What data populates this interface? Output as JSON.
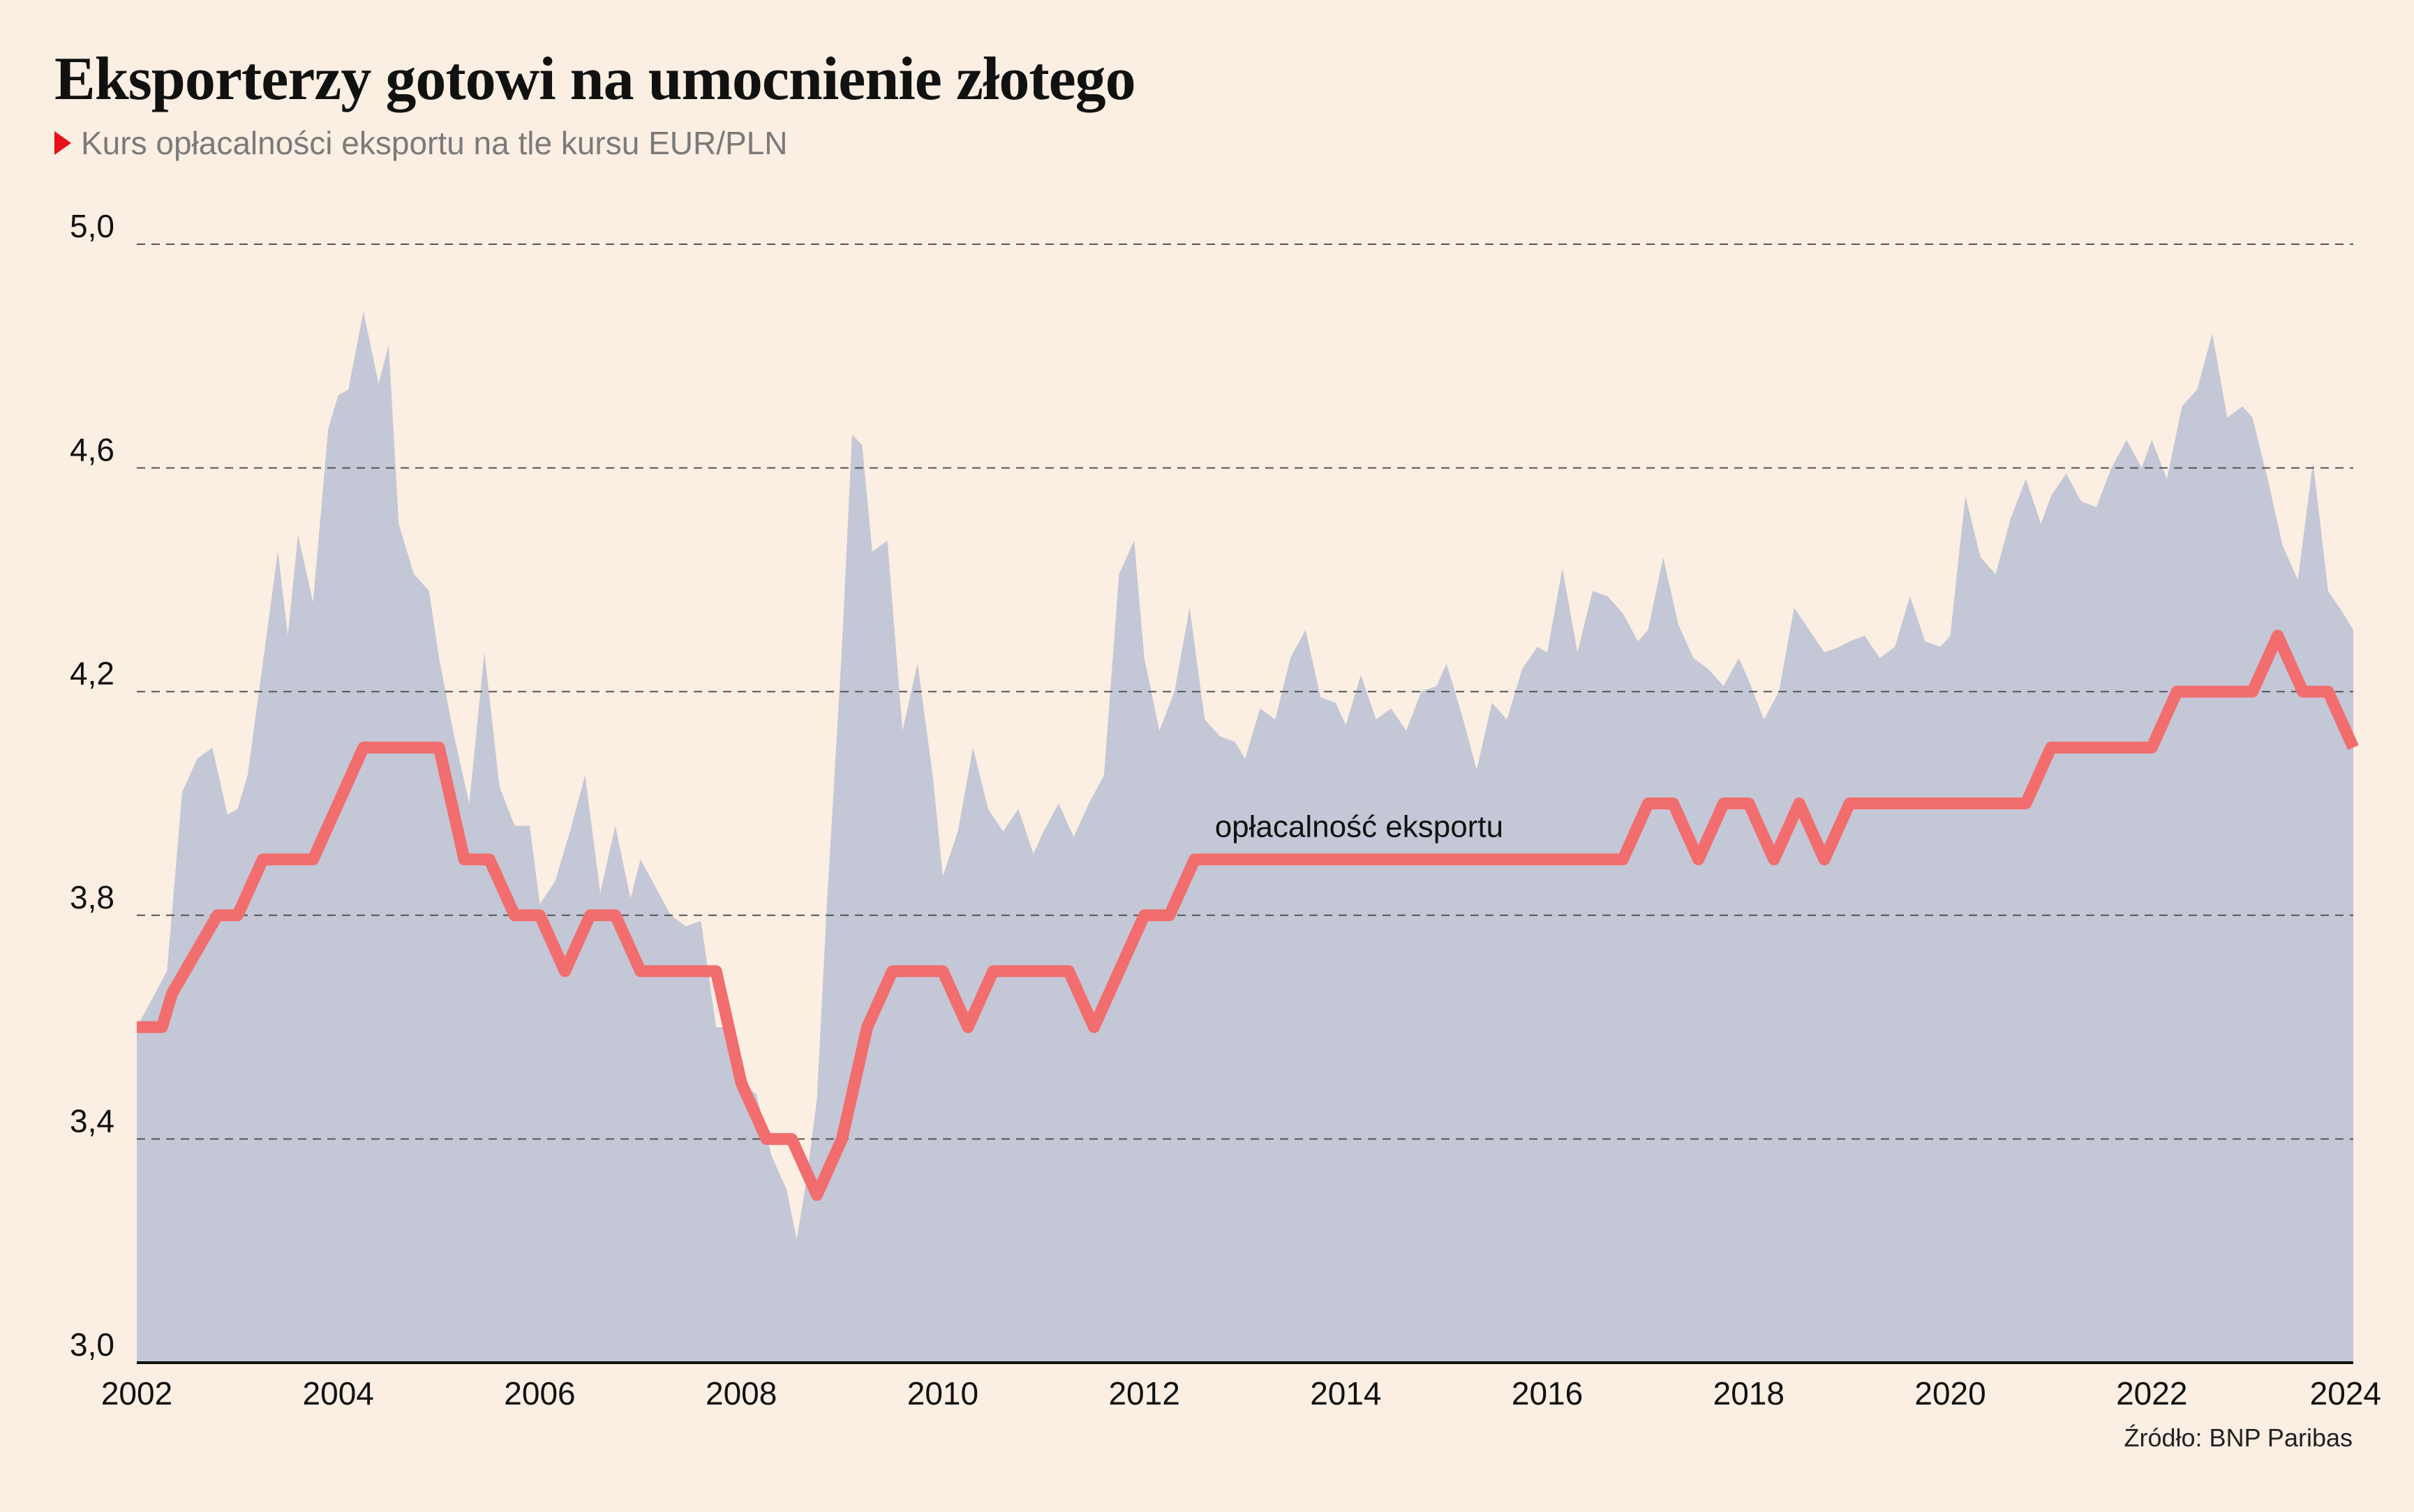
{
  "header": {
    "title": "Eksporterzy gotowi na umocnienie złotego",
    "subtitle": "Kurs opłacalności eksportu na tle kursu EUR/PLN"
  },
  "footer": {
    "source": "Źródło: BNP Paribas"
  },
  "colors": {
    "area": "#c3c7d6",
    "line": "#f26d6d",
    "background": "#fbeee2",
    "marker": "#e8101a"
  },
  "chart_data": {
    "type": "area",
    "ylim": [
      3.0,
      5.0
    ],
    "xlim": [
      2002,
      2024
    ],
    "y_ticks": [
      "3,0",
      "3,4",
      "3,8",
      "4,2",
      "4,6",
      "5,0"
    ],
    "y_tick_values": [
      3.0,
      3.4,
      3.8,
      4.2,
      4.6,
      5.0
    ],
    "x_ticks": [
      "2002",
      "2004",
      "2006",
      "2008",
      "2010",
      "2012",
      "2014",
      "2016",
      "2018",
      "2020",
      "2022",
      "2024"
    ],
    "x_tick_values": [
      2002,
      2004,
      2006,
      2008,
      2010,
      2012,
      2014,
      2016,
      2018,
      2020,
      2022,
      2024
    ],
    "grid": "horizontal dashed",
    "series": [
      {
        "type": "area",
        "x": [
          2002.0,
          2002.15,
          2002.3,
          2002.45,
          2002.6,
          2002.75,
          2002.9,
          2003.0,
          2003.1,
          2003.25,
          2003.4,
          2003.5,
          2003.6,
          2003.75,
          2003.9,
          2004.0,
          2004.1,
          2004.25,
          2004.4,
          2004.5,
          2004.6,
          2004.75,
          2004.9,
          2005.0,
          2005.15,
          2005.3,
          2005.45,
          2005.6,
          2005.75,
          2005.9,
          2006.0,
          2006.15,
          2006.3,
          2006.45,
          2006.6,
          2006.75,
          2006.9,
          2007.0,
          2007.15,
          2007.3,
          2007.45,
          2007.6,
          2007.75,
          2007.9,
          2008.0,
          2008.15,
          2008.3,
          2008.45,
          2008.55,
          2008.65,
          2008.75,
          2008.85,
          2009.0,
          2009.1,
          2009.2,
          2009.3,
          2009.45,
          2009.6,
          2009.75,
          2009.9,
          2010.0,
          2010.15,
          2010.3,
          2010.45,
          2010.6,
          2010.75,
          2010.9,
          2011.0,
          2011.15,
          2011.3,
          2011.45,
          2011.6,
          2011.75,
          2011.9,
          2012.0,
          2012.15,
          2012.3,
          2012.45,
          2012.6,
          2012.75,
          2012.9,
          2013.0,
          2013.15,
          2013.3,
          2013.45,
          2013.6,
          2013.75,
          2013.9,
          2014.0,
          2014.15,
          2014.3,
          2014.45,
          2014.6,
          2014.75,
          2014.9,
          2015.0,
          2015.15,
          2015.3,
          2015.45,
          2015.6,
          2015.75,
          2015.9,
          2016.0,
          2016.15,
          2016.3,
          2016.45,
          2016.6,
          2016.75,
          2016.9,
          2017.0,
          2017.15,
          2017.3,
          2017.45,
          2017.6,
          2017.75,
          2017.9,
          2018.0,
          2018.15,
          2018.3,
          2018.45,
          2018.6,
          2018.75,
          2018.9,
          2019.0,
          2019.15,
          2019.3,
          2019.45,
          2019.6,
          2019.75,
          2019.9,
          2020.0,
          2020.15,
          2020.3,
          2020.45,
          2020.6,
          2020.75,
          2020.9,
          2021.0,
          2021.15,
          2021.3,
          2021.45,
          2021.6,
          2021.75,
          2021.9,
          2022.0,
          2022.15,
          2022.3,
          2022.45,
          2022.6,
          2022.75,
          2022.9,
          2023.0,
          2023.15,
          2023.3,
          2023.45,
          2023.6,
          2023.75,
          2023.9,
          2024.0
        ],
        "values": [
          3.6,
          3.65,
          3.7,
          4.02,
          4.08,
          4.1,
          3.98,
          3.99,
          4.05,
          4.25,
          4.45,
          4.3,
          4.48,
          4.36,
          4.67,
          4.73,
          4.74,
          4.88,
          4.75,
          4.82,
          4.5,
          4.41,
          4.38,
          4.26,
          4.12,
          4.0,
          4.27,
          4.03,
          3.96,
          3.96,
          3.82,
          3.86,
          3.95,
          4.05,
          3.84,
          3.96,
          3.83,
          3.9,
          3.85,
          3.8,
          3.78,
          3.79,
          3.6,
          3.6,
          3.5,
          3.48,
          3.37,
          3.31,
          3.22,
          3.33,
          3.47,
          3.82,
          4.28,
          4.66,
          4.64,
          4.45,
          4.47,
          4.13,
          4.25,
          4.05,
          3.87,
          3.95,
          4.1,
          3.99,
          3.95,
          3.99,
          3.91,
          3.95,
          4.0,
          3.94,
          4.0,
          4.05,
          4.41,
          4.47,
          4.26,
          4.13,
          4.2,
          4.35,
          4.15,
          4.12,
          4.11,
          4.08,
          4.17,
          4.15,
          4.26,
          4.31,
          4.19,
          4.18,
          4.14,
          4.23,
          4.15,
          4.17,
          4.13,
          4.2,
          4.21,
          4.25,
          4.16,
          4.06,
          4.18,
          4.15,
          4.24,
          4.28,
          4.27,
          4.42,
          4.27,
          4.38,
          4.37,
          4.34,
          4.29,
          4.31,
          4.44,
          4.32,
          4.26,
          4.24,
          4.21,
          4.26,
          4.22,
          4.15,
          4.2,
          4.35,
          4.31,
          4.27,
          4.28,
          4.29,
          4.3,
          4.26,
          4.28,
          4.37,
          4.29,
          4.28,
          4.3,
          4.55,
          4.44,
          4.41,
          4.51,
          4.58,
          4.5,
          4.55,
          4.59,
          4.54,
          4.53,
          4.6,
          4.65,
          4.6,
          4.65,
          4.58,
          4.71,
          4.74,
          4.84,
          4.69,
          4.71,
          4.69,
          4.58,
          4.46,
          4.4,
          4.61,
          4.38,
          4.34,
          4.31
        ]
      },
      {
        "type": "line",
        "name": "opłacalność eksportu",
        "x": [
          2002.0,
          2002.25,
          2002.35,
          2002.8,
          2003.0,
          2003.25,
          2003.75,
          2004.25,
          2005.0,
          2005.25,
          2005.5,
          2005.75,
          2006.0,
          2006.25,
          2006.5,
          2006.75,
          2007.0,
          2007.75,
          2008.0,
          2008.25,
          2008.5,
          2008.75,
          2009.0,
          2009.25,
          2009.5,
          2010.0,
          2010.25,
          2010.5,
          2011.25,
          2011.5,
          2012.0,
          2012.25,
          2012.5,
          2016.75,
          2017.0,
          2017.25,
          2017.5,
          2017.75,
          2018.0,
          2018.25,
          2018.5,
          2018.75,
          2019.0,
          2020.75,
          2021.0,
          2022.0,
          2022.25,
          2023.0,
          2023.25,
          2023.5,
          2023.75,
          2024.0
        ],
        "values": [
          3.6,
          3.6,
          3.66,
          3.8,
          3.8,
          3.9,
          3.9,
          4.1,
          4.1,
          3.9,
          3.9,
          3.8,
          3.8,
          3.7,
          3.8,
          3.8,
          3.7,
          3.7,
          3.5,
          3.4,
          3.4,
          3.3,
          3.4,
          3.6,
          3.7,
          3.7,
          3.6,
          3.7,
          3.7,
          3.6,
          3.8,
          3.8,
          3.9,
          3.9,
          4.0,
          4.0,
          3.9,
          4.0,
          4.0,
          3.9,
          4.0,
          3.9,
          4.0,
          4.0,
          4.1,
          4.1,
          4.2,
          4.2,
          4.3,
          4.2,
          4.2,
          4.1
        ]
      }
    ],
    "annotations": [
      {
        "text": "opłacalność eksportu",
        "x": 2012.7,
        "y": 3.94
      }
    ]
  }
}
